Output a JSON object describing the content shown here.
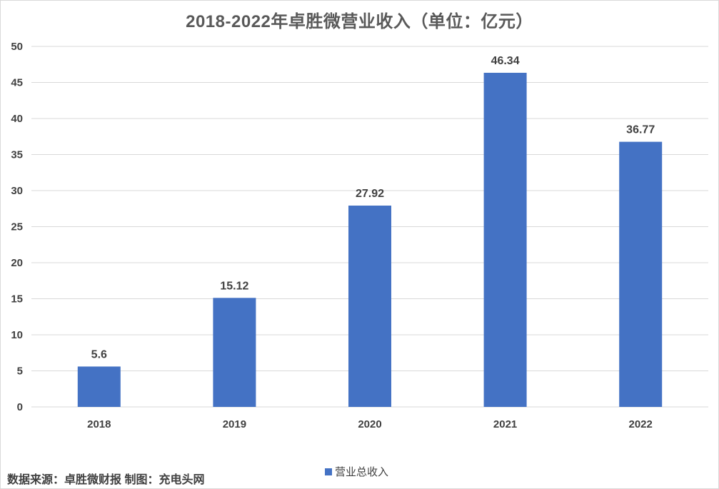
{
  "title": "2018-2022年卓胜微营业收入（单位：亿元）",
  "source_text": "数据来源：卓胜微财报 制图：充电头网",
  "colors": {
    "bar": "#4472c4",
    "grid": "#d9d9d9",
    "axis_text": "#404040"
  },
  "chart_data": {
    "type": "bar",
    "title": "2018-2022年卓胜微营业收入（单位：亿元）",
    "categories": [
      "2018",
      "2019",
      "2020",
      "2021",
      "2022"
    ],
    "series": [
      {
        "name": "营业总收入",
        "values": [
          5.6,
          15.12,
          27.92,
          46.34,
          36.77
        ],
        "value_labels": [
          "5.6",
          "15.12",
          "27.92",
          "46.34",
          "36.77"
        ]
      }
    ],
    "ylim": [
      0,
      50
    ],
    "yticks": [
      0,
      5,
      10,
      15,
      20,
      25,
      30,
      35,
      40,
      45,
      50
    ],
    "grid": true,
    "legend_position": "bottom"
  }
}
